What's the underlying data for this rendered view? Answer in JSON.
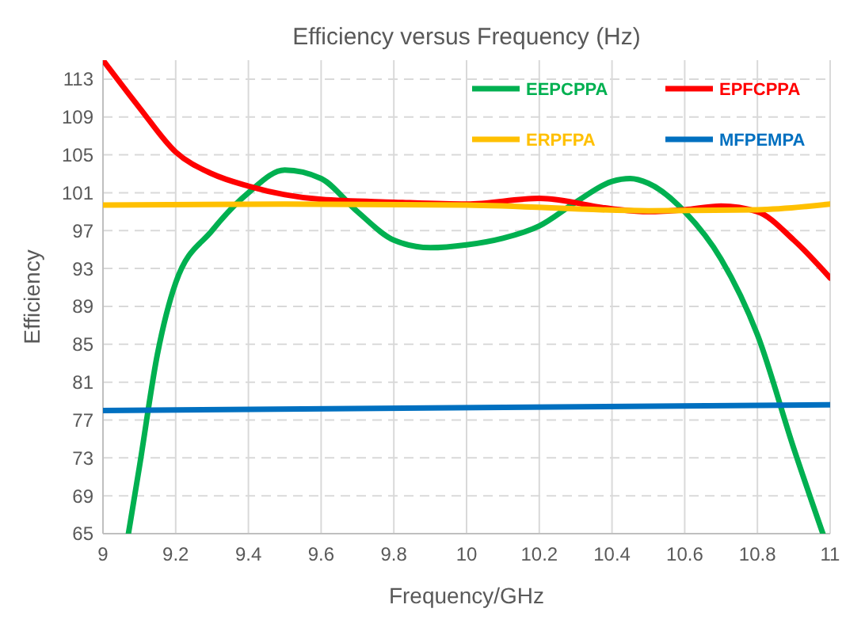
{
  "chart_data": {
    "type": "line",
    "title": "Efficiency versus Frequency (Hz)",
    "xlabel": "Frequency/GHz",
    "ylabel": "Efficiency",
    "xlim": [
      9,
      11
    ],
    "xticks": [
      9,
      9.2,
      9.4,
      9.6,
      9.8,
      10,
      10.2,
      10.4,
      10.6,
      10.8,
      11
    ],
    "ylim": [
      65,
      115
    ],
    "yticks": [
      65,
      69,
      73,
      77,
      81,
      85,
      89,
      93,
      97,
      101,
      105,
      109,
      113
    ],
    "grid": true,
    "legend": "top right",
    "marker": "none",
    "line_style": "solid",
    "series": [
      {
        "name": "EEPCPPA",
        "color": "#00b050",
        "x": [
          9.07,
          9.1,
          9.15,
          9.2,
          9.3,
          9.4,
          9.5,
          9.6,
          9.7,
          9.8,
          9.9,
          10,
          10.1,
          10.2,
          10.3,
          10.4,
          10.45,
          10.5,
          10.6,
          10.7,
          10.8,
          10.9,
          10.98
        ],
        "values": [
          65,
          72,
          84,
          91.5,
          97,
          101,
          103.4,
          102.5,
          99,
          96,
          95.2,
          95.5,
          96.2,
          97.5,
          100,
          102.2,
          102.5,
          102,
          99,
          94,
          86,
          74,
          65
        ]
      },
      {
        "name": "EPFCPPA",
        "color": "#ff0000",
        "x": [
          9,
          9.1,
          9.2,
          9.3,
          9.4,
          9.5,
          9.6,
          9.8,
          10,
          10.2,
          10.4,
          10.5,
          10.6,
          10.7,
          10.8,
          10.9,
          11
        ],
        "values": [
          115,
          110,
          105.3,
          103,
          101.7,
          100.8,
          100.3,
          100,
          99.8,
          100.4,
          99.3,
          99,
          99.2,
          99.6,
          99,
          96,
          92
        ]
      },
      {
        "name": "ERPFPA",
        "color": "#ffc000",
        "x": [
          9,
          9.5,
          10,
          10.5,
          10.8,
          11
        ],
        "values": [
          99.7,
          99.8,
          99.7,
          99.1,
          99.2,
          99.8
        ]
      },
      {
        "name": "MFPEMPA",
        "color": "#0070c0",
        "x": [
          9,
          11
        ],
        "values": [
          78,
          78.6
        ]
      }
    ]
  }
}
